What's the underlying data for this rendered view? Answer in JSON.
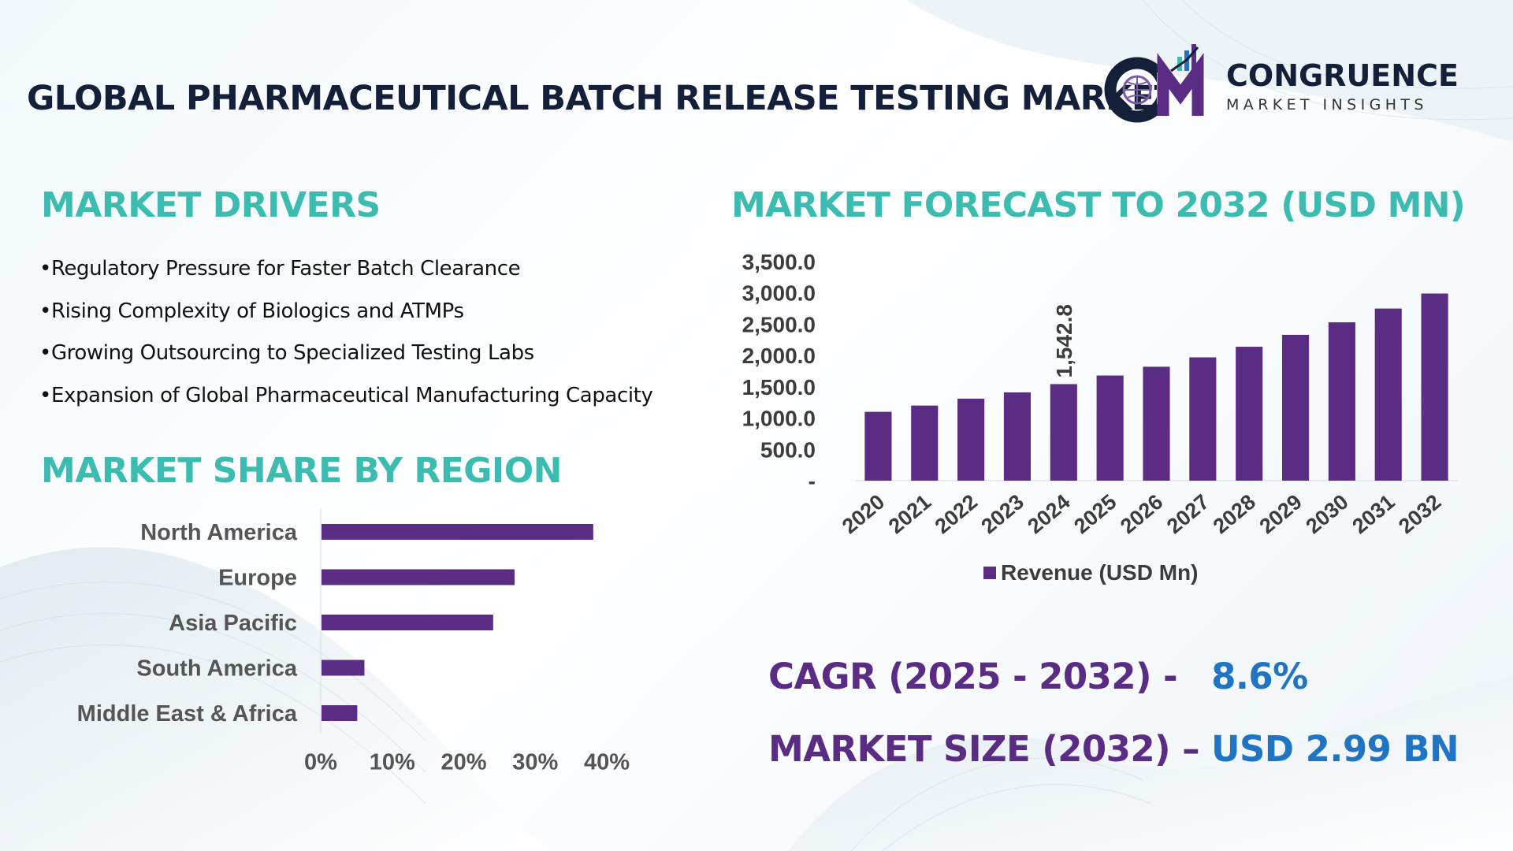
{
  "title": "GLOBAL PHARMACEUTICAL BATCH RELEASE TESTING MARKET",
  "logo": {
    "name": "CONGRUENCE",
    "subtitle": "MARKET INSIGHTS",
    "mark": "CM"
  },
  "drivers": {
    "title": "MARKET DRIVERS",
    "items": [
      "Regulatory Pressure for Faster Batch Clearance",
      "Rising Complexity of Biologics and ATMPs",
      "Growing Outsourcing to Specialized Testing Labs",
      "Expansion of Global Pharmaceutical Manufacturing Capacity"
    ]
  },
  "region_section_title": "MARKET SHARE BY REGION",
  "forecast_section_title": "MARKET FORECAST TO 2032 (USD MN)",
  "kpis": {
    "cagr_label": "CAGR (2025 - 2032) -",
    "cagr_value": "8.6%",
    "size_label": "MARKET SIZE (2032) –",
    "size_value": "USD 2.99 BN"
  },
  "colors": {
    "bar": "#5b2c83",
    "teal": "#3cbcb1",
    "blue": "#1f74c4",
    "navy": "#14203a"
  },
  "chart_data": [
    {
      "type": "bar",
      "orientation": "vertical",
      "categories": [
        "2020",
        "2021",
        "2022",
        "2023",
        "2024",
        "2025",
        "2026",
        "2027",
        "2028",
        "2029",
        "2030",
        "2031",
        "2032"
      ],
      "series": [
        {
          "name": "Revenue (USD Mn)",
          "values": [
            1100,
            1200,
            1310,
            1410,
            1542.8,
            1680,
            1820,
            1970,
            2140,
            2330,
            2530,
            2750,
            2990
          ]
        }
      ],
      "data_labels": [
        {
          "category": "2024",
          "text": "1,542.8"
        }
      ],
      "y_ticks": [
        "-",
        "500.0",
        "1,000.0",
        "1,500.0",
        "2,000.0",
        "2,500.0",
        "3,000.0",
        "3,500.0"
      ],
      "ylim": [
        0,
        3500
      ],
      "grid": false,
      "legend": "bottom"
    },
    {
      "type": "bar",
      "orientation": "horizontal",
      "categories": [
        "North America",
        "Europe",
        "Asia Pacific",
        "South America",
        "Middle East & Africa"
      ],
      "values": [
        38,
        27,
        24,
        6,
        5
      ],
      "x_ticks": [
        "0%",
        "10%",
        "20%",
        "30%",
        "40%"
      ],
      "xlim": [
        0,
        40
      ],
      "grid": false
    }
  ]
}
